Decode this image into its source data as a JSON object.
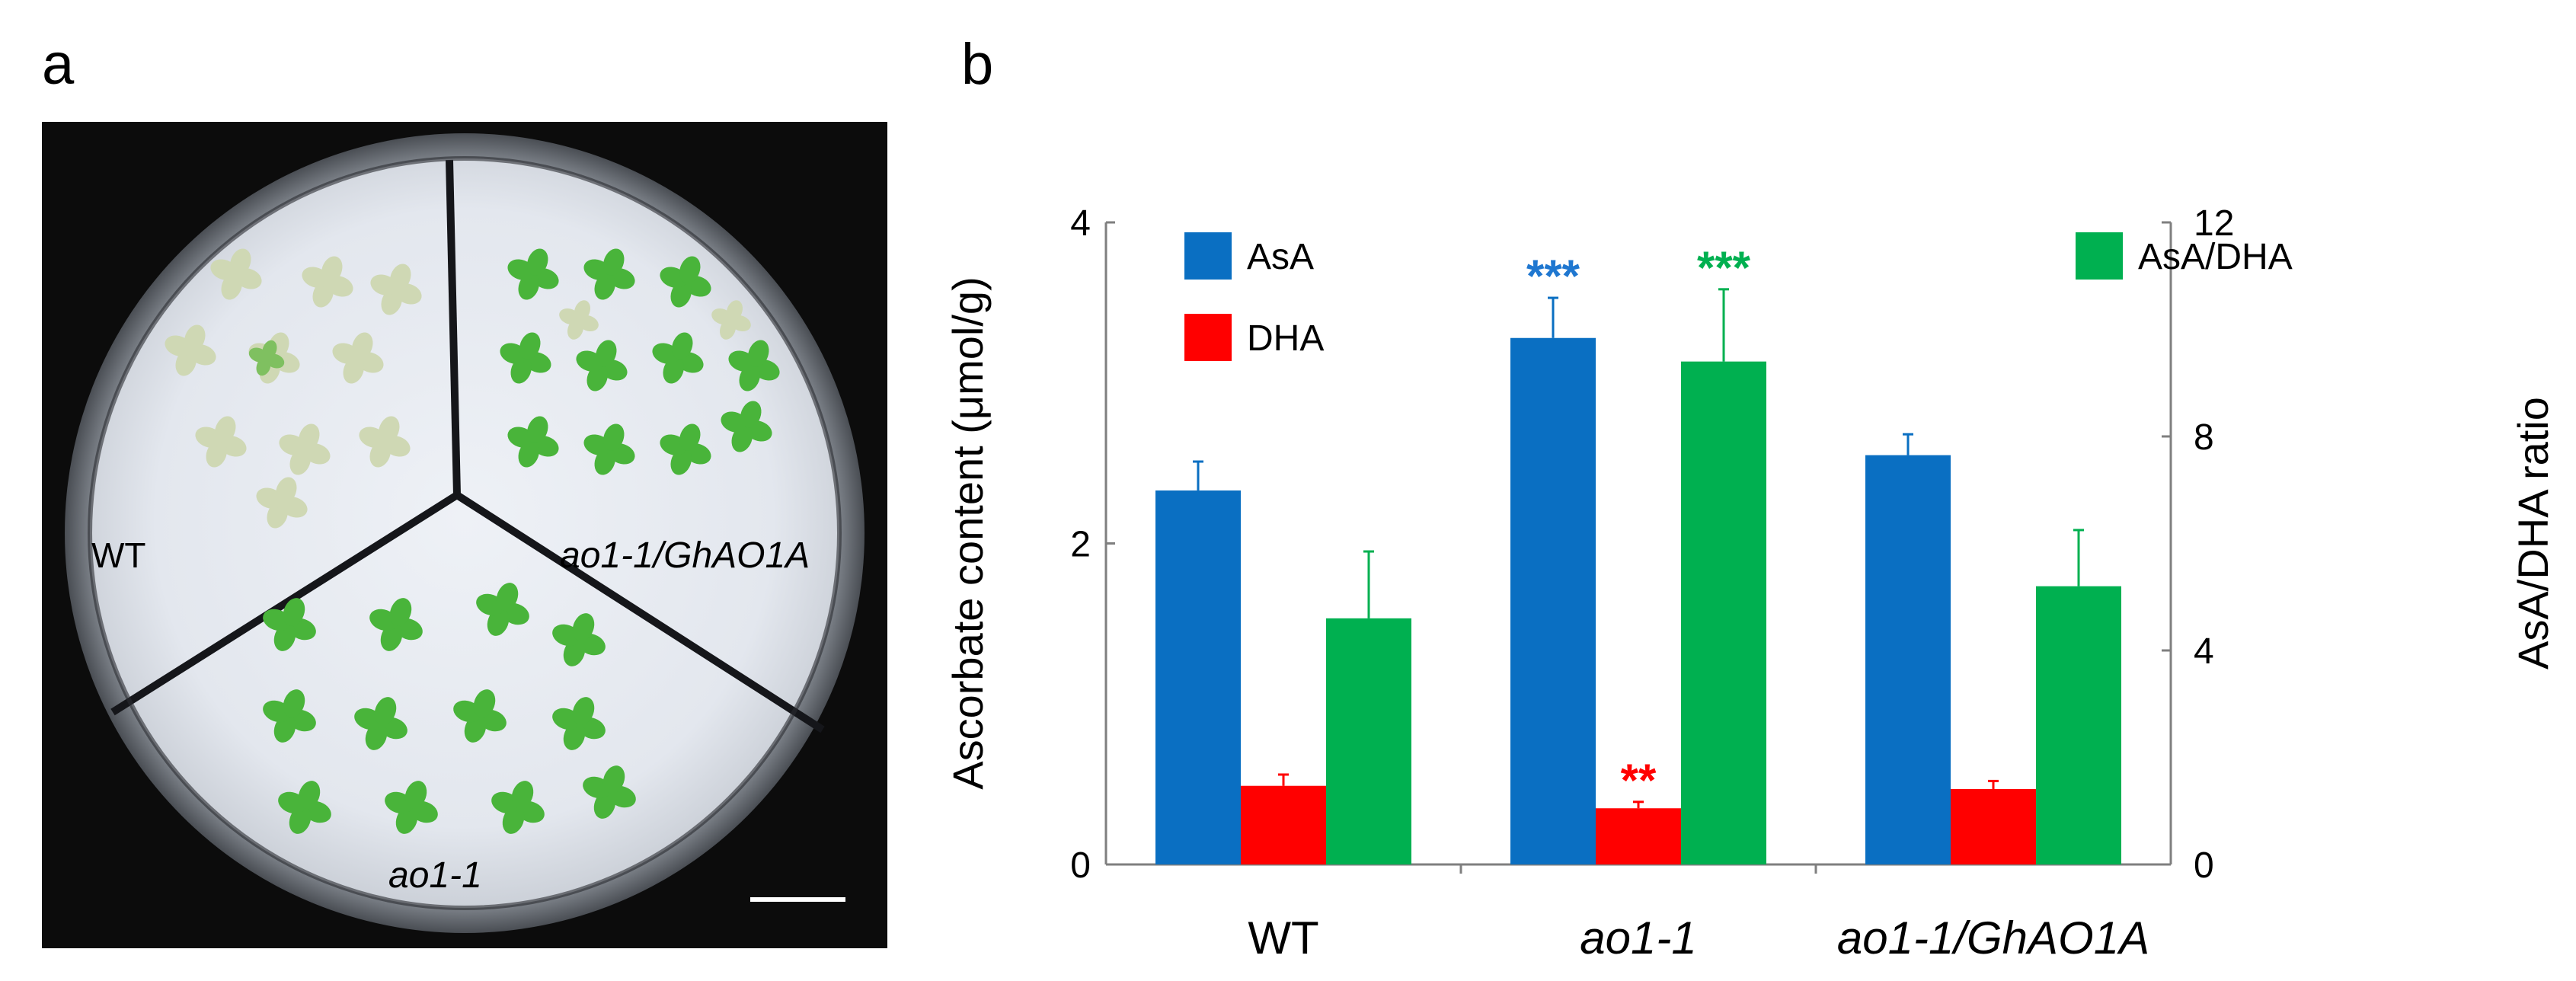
{
  "panel_a": {
    "label": "a",
    "sector_labels": {
      "wt": "WT",
      "mutant": "ao1-1",
      "complemented": "ao1-1/GhAO1A"
    }
  },
  "panel_b": {
    "label": "b"
  },
  "colors": {
    "AsA": "#0a6fc2",
    "DHA": "#ff0000",
    "AsA/DHA": "#00b050",
    "axis": "#7f7f7f",
    "text": "#000000",
    "star_AsA": "#1f77d0",
    "star_DHA": "#ff0000",
    "star_ratio": "#00b050"
  },
  "chart_data": {
    "type": "bar",
    "categories": [
      "WT",
      "ao1-1",
      "ao1-1/GhAO1A"
    ],
    "y_left": {
      "label": "Ascorbate content (μmol/g)",
      "range": [
        0,
        4
      ],
      "ticks": [
        0,
        2,
        4
      ]
    },
    "y_right": {
      "label": "AsA/DHA ratio",
      "range": [
        0,
        12
      ],
      "ticks": [
        0,
        4,
        8,
        12
      ]
    },
    "series": [
      {
        "name": "AsA",
        "axis": "left",
        "values": [
          2.33,
          3.28,
          2.55
        ],
        "errors": [
          0.18,
          0.25,
          0.13
        ],
        "significance": [
          "",
          "***",
          ""
        ]
      },
      {
        "name": "DHA",
        "axis": "left",
        "values": [
          0.49,
          0.35,
          0.47
        ],
        "errors": [
          0.07,
          0.04,
          0.05
        ],
        "significance": [
          "",
          "**",
          ""
        ]
      },
      {
        "name": "AsA/DHA",
        "axis": "right",
        "values": [
          4.6,
          9.4,
          5.2
        ],
        "errors": [
          1.25,
          1.35,
          1.05
        ],
        "significance": [
          "",
          "***",
          ""
        ]
      }
    ],
    "legend": {
      "left_entries": [
        "AsA",
        "DHA"
      ],
      "right_entries": [
        "AsA/DHA"
      ]
    },
    "grid": false
  }
}
